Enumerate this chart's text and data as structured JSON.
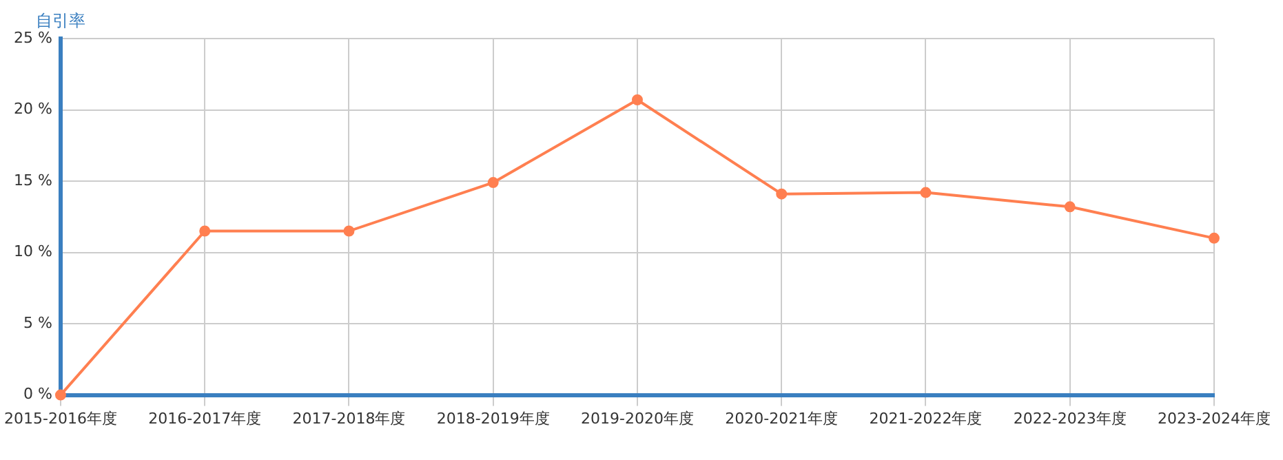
{
  "chart_data": {
    "type": "line",
    "ylabel": "自引率",
    "categories": [
      "2015-2016年度",
      "2016-2017年度",
      "2017-2018年度",
      "2018-2019年度",
      "2019-2020年度",
      "2020-2021年度",
      "2021-2022年度",
      "2022-2023年度",
      "2023-2024年度"
    ],
    "series": [
      {
        "color": "#ff7f50",
        "values": [
          0,
          11.5,
          11.5,
          14.9,
          20.7,
          14.1,
          14.2,
          13.2,
          11.0
        ]
      }
    ],
    "ylim": [
      0,
      25
    ],
    "yticks": [
      {
        "value": 0,
        "label": "0 %"
      },
      {
        "value": 5,
        "label": "5 %"
      },
      {
        "value": 10,
        "label": "10 %"
      },
      {
        "value": 15,
        "label": "15 %"
      },
      {
        "value": 20,
        "label": "20 %"
      },
      {
        "value": 25,
        "label": "25 %"
      }
    ],
    "grid": true,
    "legend": false,
    "marker": "circle",
    "line_style": "solid"
  }
}
